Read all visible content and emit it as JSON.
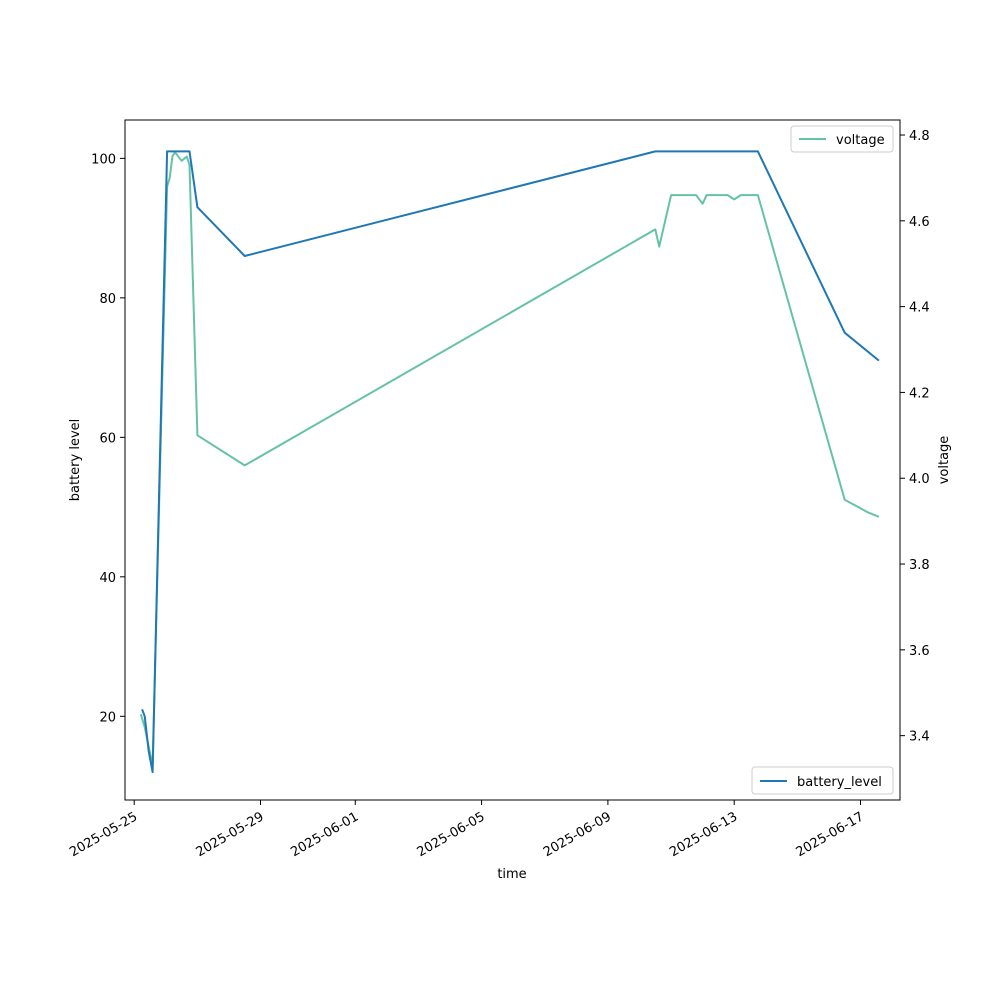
{
  "chart_data": {
    "type": "line",
    "xlabel": "time",
    "ylabel_left": "battery level",
    "ylabel_right": "voltage",
    "x_range": [
      "2025-05-24T17:00",
      "2025-06-18T06:00"
    ],
    "y_left_range": [
      8,
      105.5
    ],
    "y_right_range": [
      3.25,
      4.835
    ],
    "x_ticks": [
      "2025-05-25",
      "2025-05-29",
      "2025-06-01",
      "2025-06-05",
      "2025-06-09",
      "2025-06-13",
      "2025-06-17"
    ],
    "y_left_ticks": [
      20,
      40,
      60,
      80,
      100
    ],
    "y_right_ticks": [
      "3.4",
      "3.6",
      "3.8",
      "4.0",
      "4.2",
      "4.4",
      "4.6",
      "4.8"
    ],
    "grid": false,
    "series": [
      {
        "name": "battery_level",
        "axis": "left",
        "color": "#1f77b4",
        "legend_position": "lower-right",
        "points": [
          [
            "2025-05-25T06:00",
            21
          ],
          [
            "2025-05-25T08:00",
            20
          ],
          [
            "2025-05-25T11:00",
            15
          ],
          [
            "2025-05-25T14:00",
            12
          ],
          [
            "2025-05-26T01:00",
            101
          ],
          [
            "2025-05-26T18:00",
            101
          ],
          [
            "2025-05-27T00:00",
            93
          ],
          [
            "2025-05-28T12:00",
            86
          ],
          [
            "2025-06-10T12:00",
            101
          ],
          [
            "2025-06-13T18:00",
            101
          ],
          [
            "2025-06-16T12:00",
            75
          ],
          [
            "2025-06-17T14:00",
            71
          ]
        ]
      },
      {
        "name": "voltage",
        "axis": "right",
        "color": "#66c2a5",
        "legend_position": "upper-right",
        "points": [
          [
            "2025-05-25T05:00",
            3.45
          ],
          [
            "2025-05-25T08:00",
            3.42
          ],
          [
            "2025-05-25T14:00",
            3.33
          ],
          [
            "2025-05-26T01:00",
            4.68
          ],
          [
            "2025-05-26T03:00",
            4.7
          ],
          [
            "2025-05-26T05:00",
            4.75
          ],
          [
            "2025-05-26T07:00",
            4.76
          ],
          [
            "2025-05-26T12:00",
            4.74
          ],
          [
            "2025-05-26T16:00",
            4.75
          ],
          [
            "2025-05-26T18:00",
            4.73
          ],
          [
            "2025-05-27T00:00",
            4.1
          ],
          [
            "2025-05-28T12:00",
            4.03
          ],
          [
            "2025-06-10T12:00",
            4.58
          ],
          [
            "2025-06-10T15:00",
            4.54
          ],
          [
            "2025-06-11T00:00",
            4.66
          ],
          [
            "2025-06-11T05:00",
            4.66
          ],
          [
            "2025-06-11T12:00",
            4.66
          ],
          [
            "2025-06-11T19:00",
            4.66
          ],
          [
            "2025-06-12T00:00",
            4.64
          ],
          [
            "2025-06-12T03:00",
            4.66
          ],
          [
            "2025-06-12T08:00",
            4.66
          ],
          [
            "2025-06-12T12:00",
            4.66
          ],
          [
            "2025-06-12T19:00",
            4.66
          ],
          [
            "2025-06-13T00:00",
            4.65
          ],
          [
            "2025-06-13T05:00",
            4.66
          ],
          [
            "2025-06-13T15:00",
            4.66
          ],
          [
            "2025-06-13T18:00",
            4.66
          ],
          [
            "2025-06-16T12:00",
            3.95
          ],
          [
            "2025-06-17T06:00",
            3.92
          ],
          [
            "2025-06-17T14:00",
            3.91
          ]
        ]
      }
    ]
  }
}
